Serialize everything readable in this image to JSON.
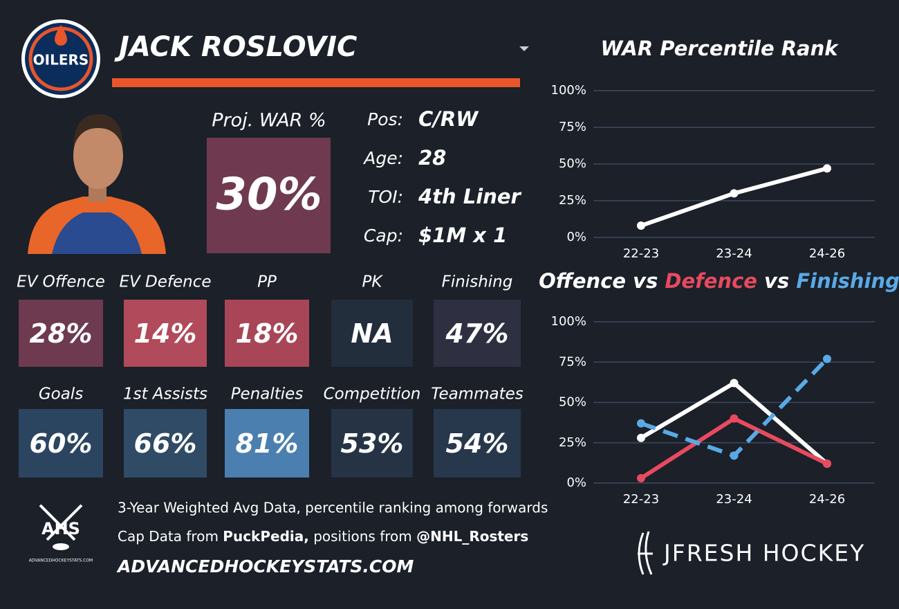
{
  "header": {
    "logo_text": "OILERS",
    "player_name": "JACK ROSLOVIC"
  },
  "projected": {
    "label": "Proj. WAR %",
    "value": "30%",
    "color": "#6f3a50"
  },
  "info": [
    {
      "label": "Pos:",
      "value": "C/RW"
    },
    {
      "label": "Age:",
      "value": "28"
    },
    {
      "label": "TOI:",
      "value": "4th Liner"
    },
    {
      "label": "Cap:",
      "value": "$1M x 1"
    }
  ],
  "tiles": [
    {
      "label": "EV Offence",
      "value": "28%",
      "color": "#6e3a4f"
    },
    {
      "label": "EV Defence",
      "value": "14%",
      "color": "#b14a5a"
    },
    {
      "label": "PP",
      "value": "18%",
      "color": "#a84658"
    },
    {
      "label": "PK",
      "value": "NA",
      "color": "#222e3c"
    },
    {
      "label": "Finishing",
      "value": "47%",
      "color": "#2e3041"
    },
    {
      "label": "Goals",
      "value": "60%",
      "color": "#2b4560"
    },
    {
      "label": "1st Assists",
      "value": "66%",
      "color": "#2f4b66"
    },
    {
      "label": "Penalties",
      "value": "81%",
      "color": "#4a7fb0"
    },
    {
      "label": "Competition",
      "value": "53%",
      "color": "#253345"
    },
    {
      "label": "Teammates",
      "value": "54%",
      "color": "#27384c"
    }
  ],
  "footer": {
    "line1": "3-Year Weighted Avg Data, percentile ranking among forwards",
    "line2": [
      {
        "text": "Cap Data from ",
        "bold": false
      },
      {
        "text": "PuckPedia,",
        "bold": true
      },
      {
        "text": " positions from ",
        "bold": false
      },
      {
        "text": "@NHL_Rosters",
        "bold": true
      }
    ],
    "website": "ADVANCEDHOCKEYSTATS.COM",
    "ahs_logo": "AHS",
    "ahs_small": "ADVANCEDHOCKEYSTATS.COM",
    "brand": "JFRESH HOCKEY"
  },
  "chart_data": [
    {
      "type": "line",
      "title": "WAR Percentile Rank",
      "categories": [
        "22-23",
        "23-24",
        "24-26"
      ],
      "values": [
        8,
        30,
        47
      ],
      "color": "#ffffff",
      "ylim": [
        0,
        100
      ],
      "yticks": [
        {
          "value": 0,
          "label": "0%"
        },
        {
          "value": 25,
          "label": "25%"
        },
        {
          "value": 50,
          "label": "50%"
        },
        {
          "value": 75,
          "label": "75%"
        },
        {
          "value": 100,
          "label": "100%"
        }
      ],
      "grid": true
    },
    {
      "type": "line",
      "title_joiner": "vs",
      "categories": [
        "22-23",
        "23-24",
        "24-26"
      ],
      "series": [
        {
          "name": "Offence",
          "color": "#ffffff",
          "values": [
            28,
            62,
            12
          ],
          "dashed": false,
          "markers": true
        },
        {
          "name": "Defence",
          "color": "#e84a5f",
          "values": [
            3,
            40,
            12
          ],
          "dashed": false,
          "markers": true
        },
        {
          "name": "Finishing",
          "color": "#5aa9e6",
          "values": [
            37,
            17,
            77
          ],
          "dashed": true,
          "markers": true
        }
      ],
      "ylim": [
        0,
        100
      ],
      "yticks": [
        {
          "value": 0,
          "label": "0%"
        },
        {
          "value": 25,
          "label": "25%"
        },
        {
          "value": 50,
          "label": "50%"
        },
        {
          "value": 75,
          "label": "75%"
        },
        {
          "value": 100,
          "label": "100%"
        }
      ],
      "grid": true
    }
  ]
}
